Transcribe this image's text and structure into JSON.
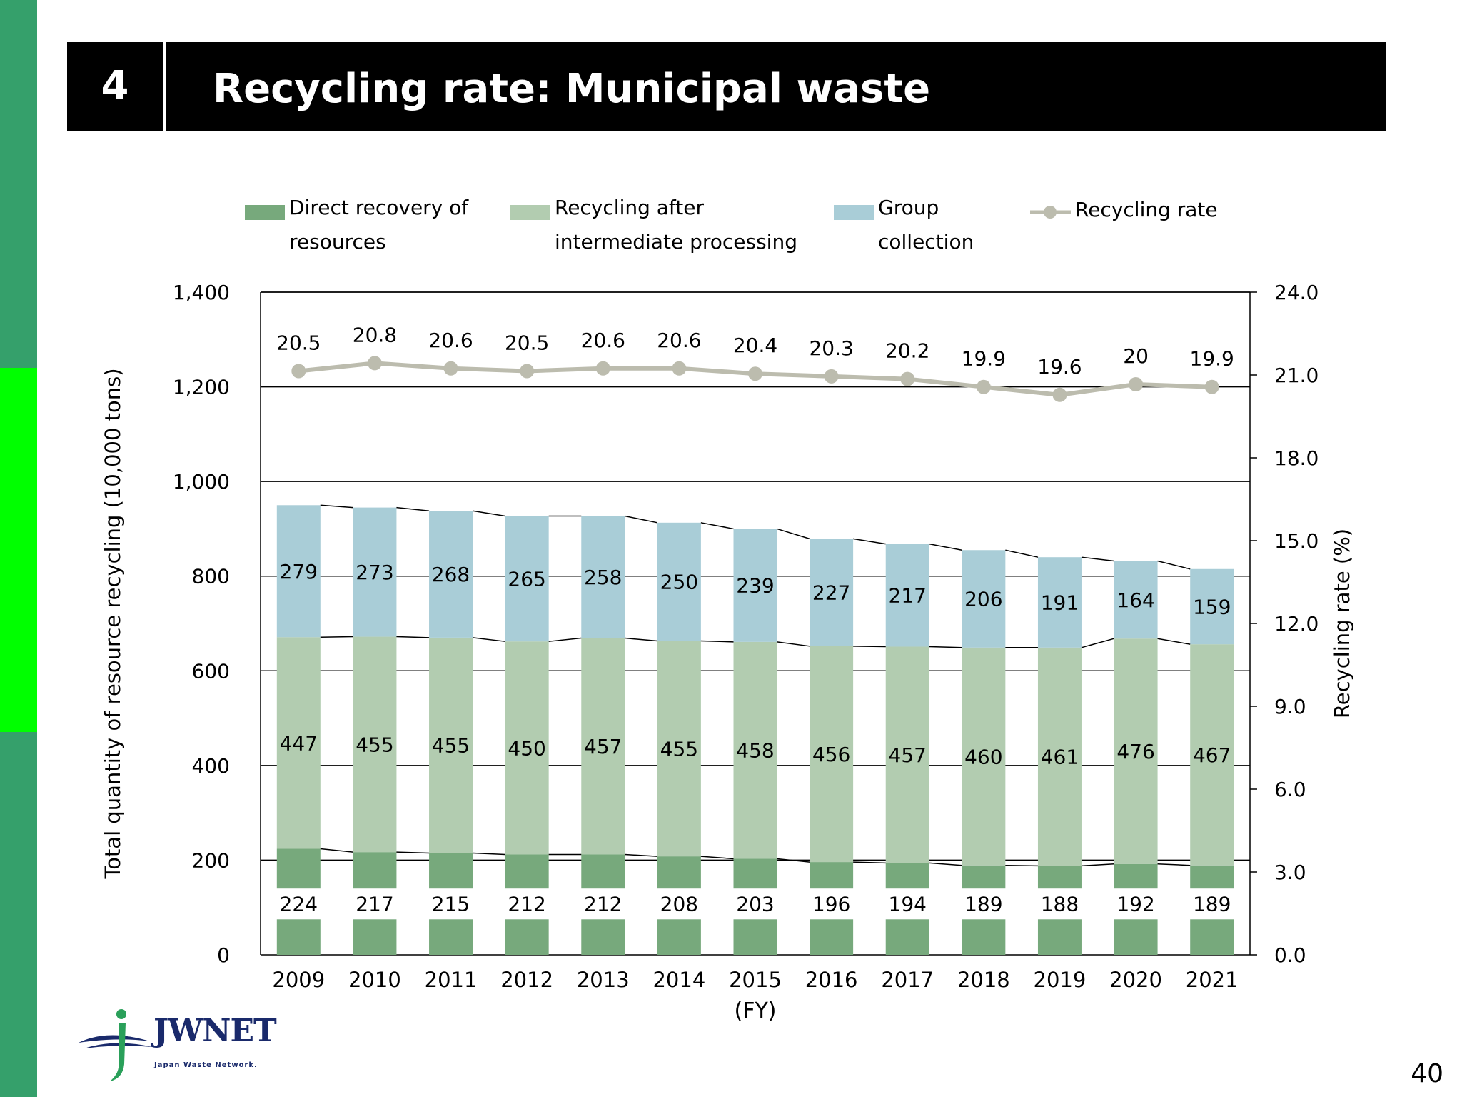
{
  "slide": {
    "number": "4",
    "title": "Recycling rate: Municipal waste",
    "page_number": "40",
    "logo_text": "JWNET",
    "logo_subtext": "Japan Waste Network."
  },
  "colors": {
    "side_bar": "#35a06b",
    "side_accent": "#00ff00",
    "direct": "#77a97c",
    "intermediate": "#b2ccb0",
    "group": "#a9cdd7",
    "rate_line": "#bcbcae",
    "logo": "#1a2a6b"
  },
  "chart_data": {
    "type": "bar",
    "stacked": true,
    "xlabel": "(FY)",
    "ylabel": "Total quantity of resource recycling (10,000 tons)",
    "y2label": "Recycling rate (%)",
    "ylim": [
      0,
      1400
    ],
    "y2lim": [
      0,
      24
    ],
    "yticks": [
      "0",
      "200",
      "400",
      "600",
      "800",
      "1,000",
      "1,200",
      "1,400"
    ],
    "y2ticks": [
      "0.0",
      "3.0",
      "6.0",
      "9.0",
      "12.0",
      "15.0",
      "18.0",
      "21.0",
      "24.0"
    ],
    "axis_break": true,
    "legend_position": "top",
    "categories": [
      "2009",
      "2010",
      "2011",
      "2012",
      "2013",
      "2014",
      "2015",
      "2016",
      "2017",
      "2018",
      "2019",
      "2020",
      "2021"
    ],
    "series": [
      {
        "name_lines": [
          "Direct recovery of",
          "resources"
        ],
        "values": [
          224,
          217,
          215,
          212,
          212,
          208,
          203,
          196,
          194,
          189,
          188,
          192,
          189
        ]
      },
      {
        "name_lines": [
          "Recycling after",
          "intermediate processing"
        ],
        "values": [
          447,
          455,
          455,
          450,
          457,
          455,
          458,
          456,
          457,
          460,
          461,
          476,
          467
        ]
      },
      {
        "name_lines": [
          "Group",
          "collection"
        ],
        "values": [
          279,
          273,
          268,
          265,
          258,
          250,
          239,
          227,
          217,
          206,
          191,
          164,
          159
        ]
      }
    ],
    "line_series": {
      "name": "Recycling rate",
      "values": [
        20.5,
        20.8,
        20.6,
        20.5,
        20.6,
        20.6,
        20.4,
        20.3,
        20.2,
        19.9,
        19.6,
        20,
        19.9
      ],
      "labels": [
        "20.5",
        "20.8",
        "20.6",
        "20.5",
        "20.6",
        "20.6",
        "20.4",
        "20.3",
        "20.2",
        "19.9",
        "19.6",
        "20",
        "19.9"
      ]
    }
  }
}
